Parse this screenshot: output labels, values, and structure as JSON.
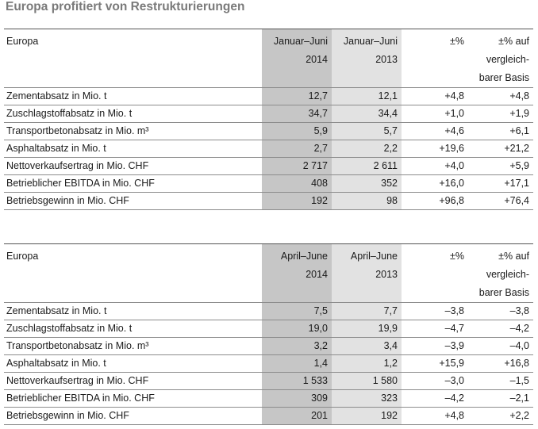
{
  "title": "Europa profitiert von Restrukturierungen",
  "tables": [
    {
      "label": "Europa",
      "col1": [
        "Januar–Juni",
        "2014"
      ],
      "col2": [
        "Januar–Juni",
        "2013"
      ],
      "col3": [
        "±%"
      ],
      "col4": [
        "±% auf",
        "vergleich-",
        "barer Basis"
      ],
      "rows": [
        {
          "label": "Zementabsatz in Mio. t",
          "v1": "12,7",
          "v2": "12,1",
          "v3": "+4,8",
          "v4": "+4,8"
        },
        {
          "label": "Zuschlagstoffabsatz in Mio. t",
          "v1": "34,7",
          "v2": "34,4",
          "v3": "+1,0",
          "v4": "+1,9"
        },
        {
          "label": "Transportbetonabsatz in Mio. m³",
          "v1": "5,9",
          "v2": "5,7",
          "v3": "+4,6",
          "v4": "+6,1"
        },
        {
          "label": "Asphaltabsatz in Mio. t",
          "v1": "2,7",
          "v2": "2,2",
          "v3": "+19,6",
          "v4": "+21,2"
        },
        {
          "label": "Nettoverkaufsertrag in Mio. CHF",
          "v1": "2 717",
          "v2": "2 611",
          "v3": "+4,0",
          "v4": "+5,9"
        },
        {
          "label": "Betrieblicher EBITDA in Mio. CHF",
          "v1": "408",
          "v2": "352",
          "v3": "+16,0",
          "v4": "+17,1"
        },
        {
          "label": "Betriebsgewinn in Mio. CHF",
          "v1": "192",
          "v2": "98",
          "v3": "+96,8",
          "v4": "+76,4"
        }
      ]
    },
    {
      "label": "Europa",
      "col1": [
        "April–June",
        "2014"
      ],
      "col2": [
        "April–June",
        "2013"
      ],
      "col3": [
        "±%"
      ],
      "col4": [
        "±% auf",
        "vergleich-",
        "barer Basis"
      ],
      "rows": [
        {
          "label": "Zementabsatz in Mio. t",
          "v1": "7,5",
          "v2": "7,7",
          "v3": "–3,8",
          "v4": "–3,8"
        },
        {
          "label": "Zuschlagstoffabsatz in Mio. t",
          "v1": "19,0",
          "v2": "19,9",
          "v3": "–4,7",
          "v4": "–4,2"
        },
        {
          "label": "Transportbetonabsatz in Mio. m³",
          "v1": "3,2",
          "v2": "3,4",
          "v3": "–3,9",
          "v4": "–4,0"
        },
        {
          "label": "Asphaltabsatz in Mio. t",
          "v1": "1,4",
          "v2": "1,2",
          "v3": "+15,9",
          "v4": "+16,8"
        },
        {
          "label": "Nettoverkaufsertrag in Mio. CHF",
          "v1": "1 533",
          "v2": "1 580",
          "v3": "–3,0",
          "v4": "–1,5"
        },
        {
          "label": "Betrieblicher EBITDA in Mio. CHF",
          "v1": "309",
          "v2": "323",
          "v3": "–4,2",
          "v4": "–2,1"
        },
        {
          "label": "Betriebsgewinn in Mio. CHF",
          "v1": "201",
          "v2": "192",
          "v3": "+4,8",
          "v4": "+2,2"
        }
      ]
    }
  ]
}
